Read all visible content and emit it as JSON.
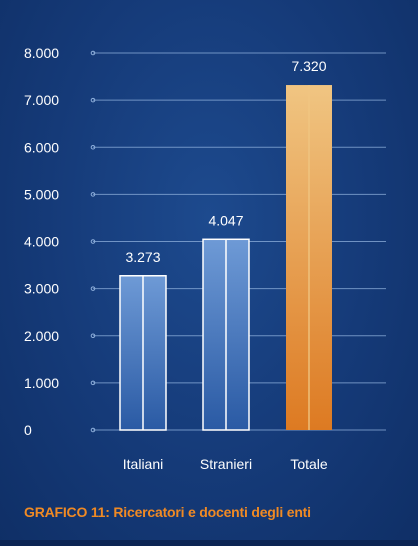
{
  "colors": {
    "background": "#163b79",
    "gridline": "#8fb0dc",
    "tick_text": "#ffffff",
    "blue_bar_top": "#6e9ad6",
    "blue_bar_bottom": "#2a5aa4",
    "bar_outline": "#ffffff",
    "total_bar_top": "#f0c582",
    "total_bar_bottom": "#dd7a22",
    "caption": "#f08a24"
  },
  "chart_data": {
    "type": "bar",
    "categories": [
      "Italiani",
      "Stranieri",
      "Totale"
    ],
    "values": [
      3273,
      4047,
      7320
    ],
    "value_labels": [
      "3.273",
      "4.047",
      "7.320"
    ],
    "y_ticks": [
      0,
      1000,
      2000,
      3000,
      4000,
      5000,
      6000,
      7000,
      8000
    ],
    "y_tick_labels": [
      "0",
      "1.000",
      "2.000",
      "3.000",
      "4.000",
      "5.000",
      "6.000",
      "7.000",
      "8.000"
    ],
    "ylim": [
      0,
      8000
    ],
    "highlighted_category": "Totale",
    "grid": true,
    "legend": "none",
    "title": "GRAFICO 11: Ricercatori e docenti degli enti"
  }
}
